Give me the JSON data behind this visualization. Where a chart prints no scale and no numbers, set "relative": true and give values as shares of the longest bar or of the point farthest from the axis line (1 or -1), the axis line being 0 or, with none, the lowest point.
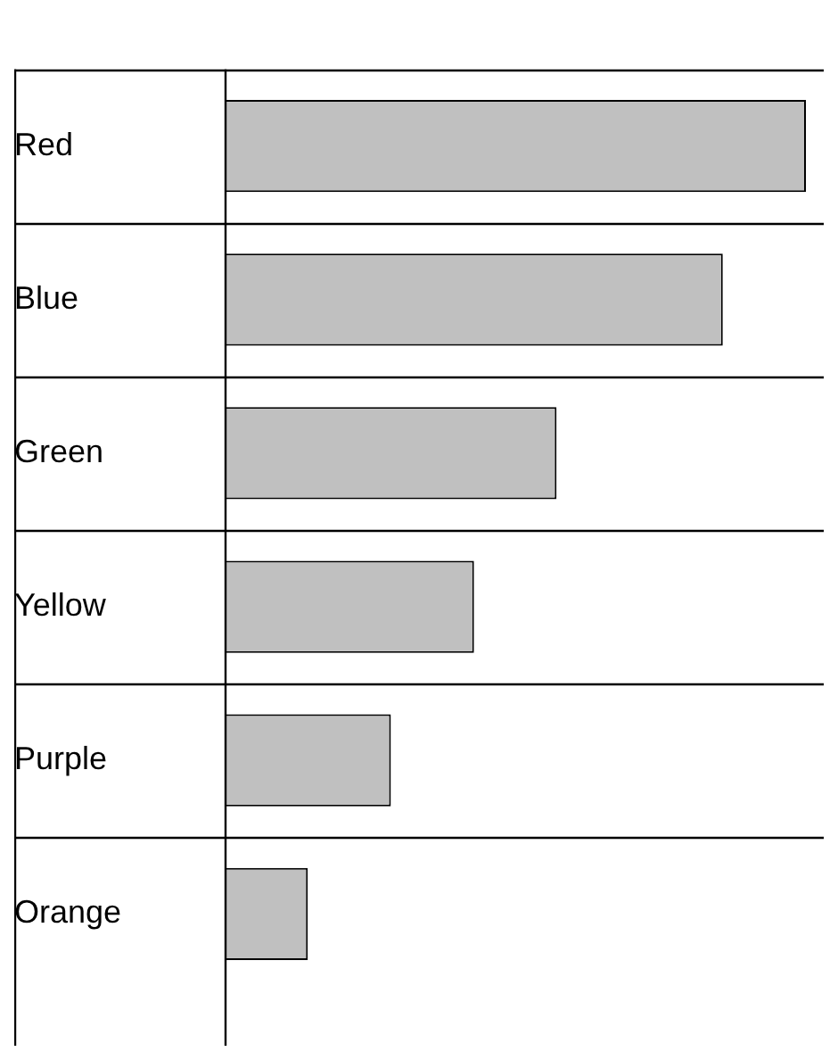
{
  "chart_data": {
    "type": "bar",
    "orientation": "horizontal",
    "relative": true,
    "grid": "y",
    "categories": [
      "Red",
      "Blue",
      "Green",
      "Yellow",
      "Purple",
      "Orange"
    ],
    "values": [
      1,
      0.857,
      0.571,
      0.429,
      0.286,
      0.143
    ],
    "color": "#c0c0c0"
  }
}
